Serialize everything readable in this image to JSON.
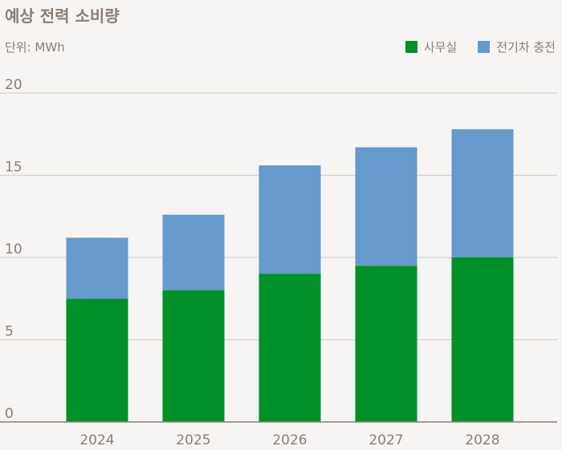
{
  "chart_data": {
    "type": "bar",
    "stacked": true,
    "title": "예상 전력 소비량",
    "unit_label": "단위: MWh",
    "categories": [
      "2024",
      "2025",
      "2026",
      "2027",
      "2028"
    ],
    "series": [
      {
        "name": "사무실",
        "color": "#009028",
        "values": [
          7.5,
          8.0,
          9.0,
          9.5,
          10.0
        ]
      },
      {
        "name": "전기차 충전",
        "color": "#6699cc",
        "values": [
          3.7,
          4.6,
          6.6,
          7.2,
          7.8
        ]
      }
    ],
    "ylim": [
      0,
      20
    ],
    "yticks": [
      0,
      5,
      10,
      15,
      20
    ],
    "grid": true,
    "legend_position": "top-right"
  }
}
